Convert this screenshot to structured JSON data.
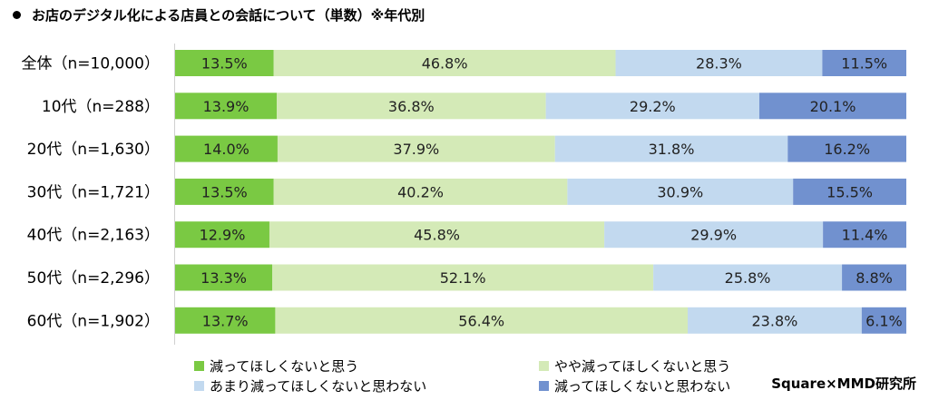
{
  "title": "お店のデジタル化による店員との会話について（単数）※年代別",
  "credit": "Square×MMD研究所",
  "colors": {
    "s1": "#7ac943",
    "s2": "#d4eab7",
    "s3": "#c2d9ef",
    "s4": "#7191cf"
  },
  "chart_data": {
    "type": "bar",
    "orientation": "horizontal",
    "stacked": "100%",
    "title": "お店のデジタル化による店員との会話について（単数）※年代別",
    "categories": [
      "全体（n=10,000）",
      "10代（n=288）",
      "20代（n=1,630）",
      "30代（n=1,721）",
      "40代（n=2,163）",
      "50代（n=2,296）",
      "60代（n=1,902）"
    ],
    "series": [
      {
        "name": "減ってほしくないと思う",
        "values": [
          13.5,
          13.9,
          14.0,
          13.5,
          12.9,
          13.3,
          13.7
        ]
      },
      {
        "name": "やや減ってほしくないと思う",
        "values": [
          46.8,
          36.8,
          37.9,
          40.2,
          45.8,
          52.1,
          56.4
        ]
      },
      {
        "name": "あまり減ってほしくないと思わない",
        "values": [
          28.3,
          29.2,
          31.8,
          30.9,
          29.9,
          25.8,
          23.8
        ]
      },
      {
        "name": "減ってほしくないと思わない",
        "values": [
          11.5,
          20.1,
          16.2,
          15.5,
          11.4,
          8.8,
          6.1
        ]
      }
    ],
    "value_suffix": "%",
    "legend": "bottom"
  }
}
